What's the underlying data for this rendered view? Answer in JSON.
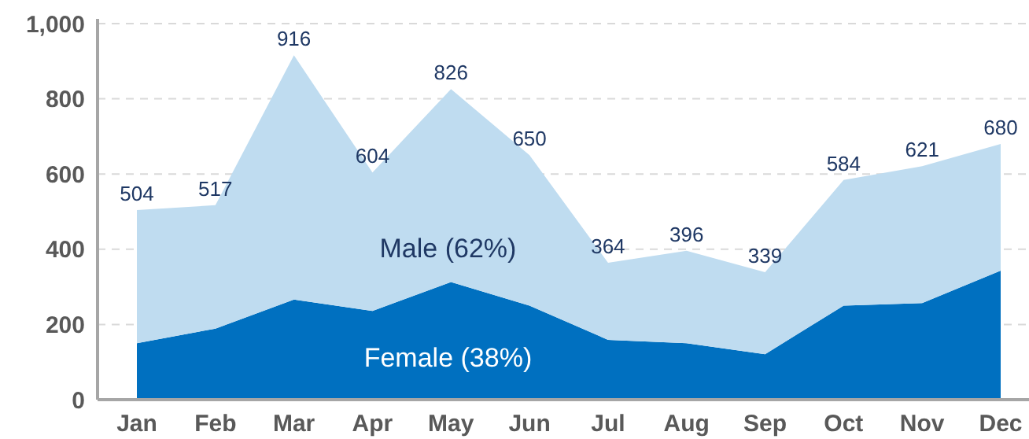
{
  "chart_data": {
    "type": "area",
    "stacked": true,
    "categories": [
      "Jan",
      "Feb",
      "Mar",
      "Apr",
      "May",
      "Jun",
      "Jul",
      "Aug",
      "Sep",
      "Oct",
      "Nov",
      "Dec"
    ],
    "series": [
      {
        "name": "Female (38%)",
        "color": "#0070c0",
        "values": [
          150,
          189,
          266,
          236,
          313,
          250,
          159,
          150,
          121,
          250,
          257,
          343
        ]
      },
      {
        "name": "Male (62%)",
        "color": "#bfdcf0",
        "values": [
          354,
          328,
          650,
          368,
          513,
          400,
          205,
          246,
          218,
          334,
          364,
          337
        ]
      }
    ],
    "totals": [
      "504",
      "517",
      "916",
      "604",
      "826",
      "650",
      "364",
      "396",
      "339",
      "584",
      "621",
      "680"
    ],
    "ylim": [
      0,
      1000
    ],
    "yticks": [
      0,
      200,
      400,
      600,
      800,
      {
        "value": 1000,
        "label": "1,000"
      }
    ],
    "grid": "y"
  }
}
